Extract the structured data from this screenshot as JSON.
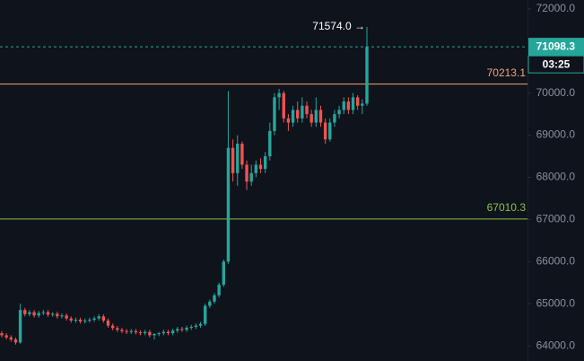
{
  "chart_data": {
    "type": "candlestick",
    "up_color": "#26a69a",
    "down_color": "#ef5350",
    "ylim": [
      63640,
      72210
    ],
    "yticks": [
      {
        "value": 64000,
        "label": "64000.0"
      },
      {
        "value": 65000,
        "label": "65000.0"
      },
      {
        "value": 66000,
        "label": "66000.0"
      },
      {
        "value": 67000,
        "label": "67000.0"
      },
      {
        "value": 68000,
        "label": "68000.0"
      },
      {
        "value": 69000,
        "label": "69000.0"
      },
      {
        "value": 70000,
        "label": "70000.0"
      },
      {
        "value": 71000,
        "label": "71000.0"
      },
      {
        "value": 72000,
        "label": "72000.0"
      }
    ],
    "open": [
      64300,
      64250,
      64200,
      64150,
      64080,
      64850,
      64750,
      64800,
      64720,
      64780,
      64800,
      64740,
      64760,
      64700,
      64720,
      64650,
      64600,
      64620,
      64580,
      64600,
      64620,
      64650,
      64700,
      64600,
      64480,
      64420,
      64380,
      64350,
      64330,
      64350,
      64320,
      64300,
      64330,
      64250,
      64280,
      64300,
      64330,
      64300,
      64360,
      64400,
      64380,
      64430,
      64450,
      64480,
      64520,
      64950,
      65050,
      65200,
      65450,
      66000,
      68700,
      68100,
      68800,
      68300,
      67900,
      68100,
      68300,
      68200,
      68500,
      69100,
      69900,
      70000,
      69400,
      69300,
      69600,
      69400,
      69700,
      69500,
      69300,
      69600,
      69300,
      68900,
      69300,
      69500,
      69600,
      69800,
      69600,
      69900,
      69700,
      69750
    ],
    "high": [
      64350,
      64300,
      64250,
      64200,
      65000,
      64900,
      64850,
      64850,
      64830,
      64850,
      64850,
      64800,
      64810,
      64770,
      64770,
      64700,
      64670,
      64670,
      64650,
      64670,
      64700,
      64750,
      64750,
      64650,
      64530,
      64470,
      64430,
      64400,
      64400,
      64400,
      64370,
      64380,
      64380,
      64300,
      64330,
      64380,
      64380,
      64410,
      64450,
      64450,
      64480,
      64500,
      64530,
      64570,
      65000,
      65100,
      65250,
      65500,
      66050,
      70050,
      68900,
      69000,
      68850,
      68400,
      68300,
      68400,
      68450,
      68600,
      69300,
      70000,
      70100,
      70050,
      69500,
      69700,
      69800,
      69900,
      69800,
      69600,
      69900,
      69700,
      69400,
      69400,
      69600,
      69700,
      69900,
      69900,
      70000,
      69950,
      69850,
      71574
    ],
    "low": [
      64200,
      64150,
      64100,
      64030,
      64050,
      64700,
      64700,
      64670,
      64670,
      64730,
      64690,
      64690,
      64650,
      64650,
      64600,
      64550,
      64550,
      64530,
      64530,
      64550,
      64570,
      64600,
      64550,
      64430,
      64370,
      64330,
      64300,
      64280,
      64280,
      64270,
      64250,
      64250,
      64200,
      64150,
      64230,
      64250,
      64250,
      64250,
      64310,
      64330,
      64330,
      64380,
      64400,
      64430,
      64470,
      64900,
      65000,
      65150,
      65400,
      65950,
      67900,
      67800,
      68200,
      67700,
      67800,
      68000,
      68100,
      68100,
      68400,
      69000,
      69600,
      69300,
      69100,
      69200,
      69300,
      69300,
      69400,
      69200,
      69200,
      69200,
      68800,
      68850,
      69200,
      69400,
      69500,
      69500,
      69500,
      69600,
      69500,
      69700
    ],
    "close": [
      64250,
      64200,
      64150,
      64080,
      64850,
      64750,
      64800,
      64720,
      64780,
      64800,
      64740,
      64760,
      64700,
      64720,
      64650,
      64600,
      64620,
      64580,
      64600,
      64620,
      64650,
      64700,
      64600,
      64480,
      64420,
      64380,
      64350,
      64330,
      64350,
      64320,
      64300,
      64330,
      64250,
      64280,
      64300,
      64330,
      64300,
      64360,
      64400,
      64380,
      64430,
      64450,
      64480,
      64520,
      64950,
      65050,
      65200,
      65450,
      66000,
      68700,
      68100,
      68800,
      68300,
      67900,
      68100,
      68300,
      68200,
      68500,
      69100,
      69900,
      70000,
      69400,
      69300,
      69600,
      69400,
      69700,
      69500,
      69300,
      69600,
      69300,
      68900,
      69300,
      69500,
      69600,
      69800,
      69600,
      69900,
      69700,
      69750,
      71098.3
    ],
    "price_lines": [
      {
        "value": 70213.1,
        "color": "#f4a47a"
      },
      {
        "value": 67010.3,
        "color": "#8bc34a"
      }
    ],
    "last_price": {
      "value": 71098.3,
      "countdown": "03:25",
      "color": "#26a69a"
    },
    "high_marker": {
      "value": 71574,
      "label": "71574.0 →"
    }
  }
}
